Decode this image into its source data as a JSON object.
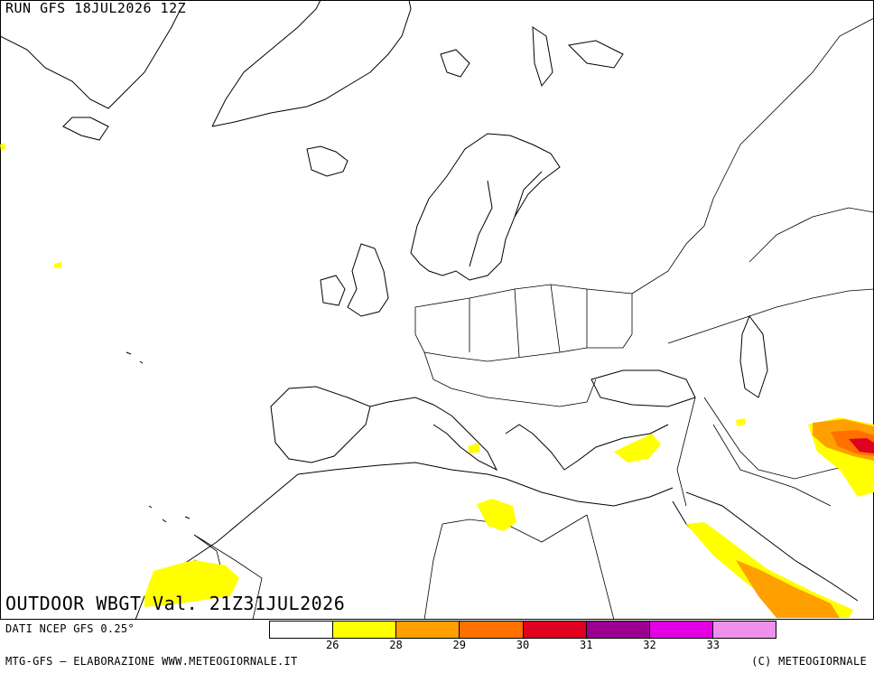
{
  "header": {
    "run": "RUN GFS 18JUL2026 12Z"
  },
  "field": {
    "title": "OUTDOOR WBGT Val. 21Z31JUL2026"
  },
  "footer": {
    "source": "DATI NCEP GFS 0.25°",
    "credits": "MTG-GFS — ELABORAZIONE WWW.METEOGIORNALE.IT",
    "copyright": "(C) METEOGIORNALE"
  },
  "legend": {
    "colors": [
      "#ffffff",
      "#ffff00",
      "#ff9f00",
      "#ff7000",
      "#e0001f",
      "#9b0090",
      "#e400e4",
      "#f090ee"
    ],
    "labels": [
      "26",
      "28",
      "29",
      "30",
      "31",
      "32",
      "33"
    ]
  }
}
